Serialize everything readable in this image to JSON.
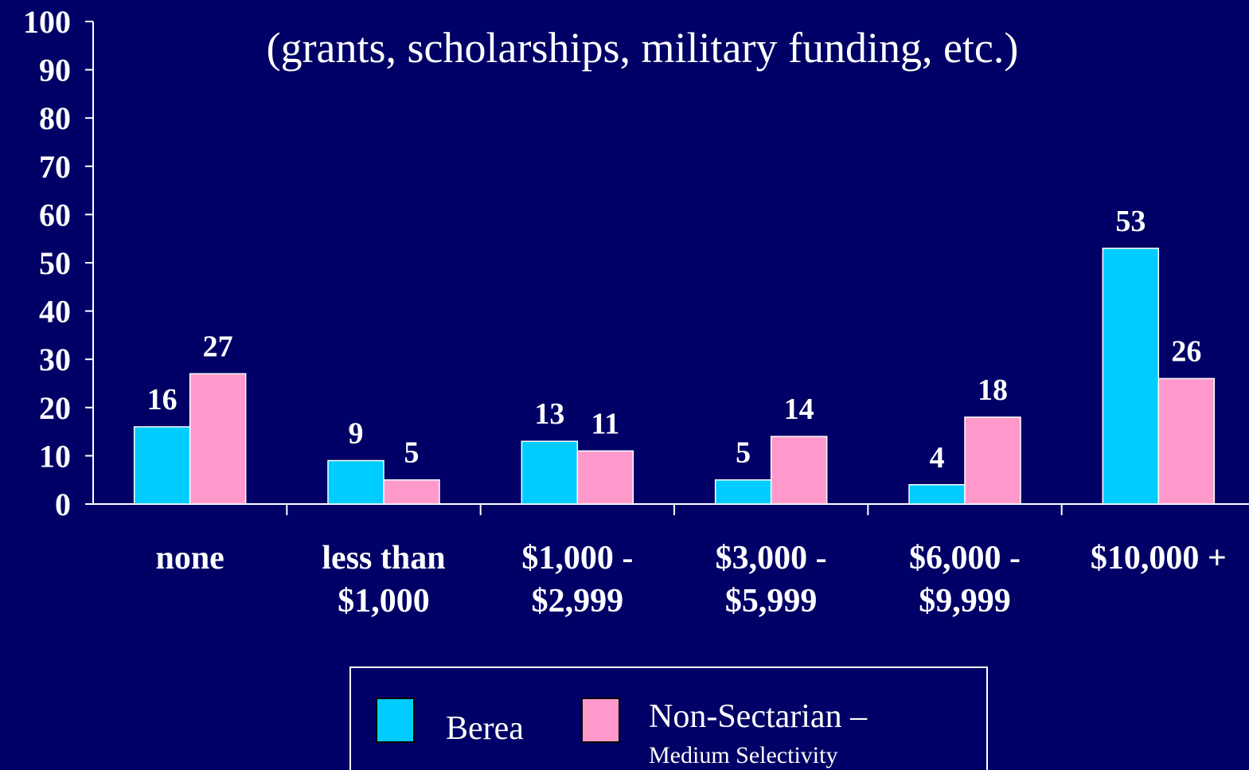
{
  "chart_data": {
    "type": "bar",
    "subtitle": "(grants, scholarships, military funding, etc.)",
    "categories": [
      "none",
      "less than\n$1,000",
      "$1,000 -\n$2,999",
      "$3,000 -\n$5,999",
      "$6,000 -\n$9,999",
      "$10,000 +"
    ],
    "series": [
      {
        "name": "Berea",
        "color": "#00ccff",
        "values": [
          16,
          9,
          13,
          5,
          4,
          53
        ]
      },
      {
        "name": "Non-Sectarian –",
        "color": "#ff99cc",
        "values": [
          27,
          5,
          11,
          14,
          18,
          26
        ]
      }
    ],
    "legend_note": "Medium Selectivity",
    "ylim": [
      0,
      100
    ],
    "yticks": [
      0,
      10,
      20,
      30,
      40,
      50,
      60,
      70,
      80,
      90,
      100
    ],
    "legend": "bottom"
  }
}
